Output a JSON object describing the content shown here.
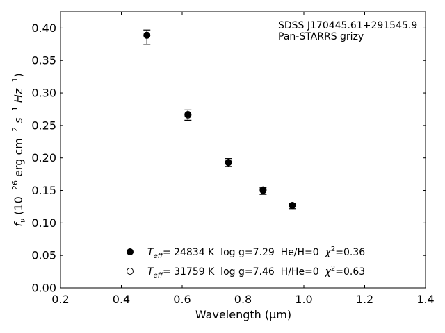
{
  "chart_data": {
    "type": "scatter",
    "annotation_lines": [
      "SDSS J170445.61+291545.9",
      "Pan-STARRS grizy"
    ],
    "xlabel": "Wavelength (μm)",
    "ylabel": {
      "prefix": "f",
      "sub": "ν",
      "unit_text": " (10",
      "exp": "−26",
      "unit_text2": " erg cm",
      "exp2": "−2",
      "unit_text3": " s",
      "exp3": "−1",
      "unit_text4": " Hz",
      "exp4": "−1",
      "unit_text5": ")"
    },
    "xlim": [
      0.2,
      1.4
    ],
    "ylim": [
      0.0,
      0.425
    ],
    "xticks": [
      "0.2",
      "0.4",
      "0.6",
      "0.8",
      "1.0",
      "1.2",
      "1.4"
    ],
    "yticks": [
      "0.00",
      "0.05",
      "0.10",
      "0.15",
      "0.20",
      "0.25",
      "0.30",
      "0.35",
      "0.40"
    ],
    "observed": {
      "x": [
        0.484,
        0.619,
        0.752,
        0.866,
        0.962
      ],
      "y": [
        0.386,
        0.266,
        0.193,
        0.149,
        0.126
      ],
      "err": [
        0.011,
        0.008,
        0.006,
        0.005,
        0.004
      ]
    },
    "series": [
      {
        "name": "Teff= 24834 K  log g=7.29  He/H=0  χ2=0.36",
        "marker": "filled",
        "x": [
          0.484,
          0.619,
          0.752,
          0.866,
          0.962
        ],
        "y": [
          0.389,
          0.267,
          0.193,
          0.15,
          0.127
        ]
      },
      {
        "name": "Teff= 31759 K  log g=7.46  H/He=0  χ2=0.63",
        "marker": "open",
        "x": [
          0.484,
          0.619,
          0.752,
          0.866,
          0.962
        ],
        "y": [
          0.389,
          0.266,
          0.193,
          0.151,
          0.127
        ]
      }
    ],
    "legend": {
      "placement": "lower-left",
      "entries": [
        {
          "t": "T",
          "t_sub": "eff",
          "rest": "= 24834 K  log g=7.29  He/H=0  ",
          "chi": "χ",
          "chi_sup": "2",
          "chi_val": "=0.36"
        },
        {
          "t": "T",
          "t_sub": "eff",
          "rest": "= 31759 K  log g=7.46  H/He=0  ",
          "chi": "χ",
          "chi_sup": "2",
          "chi_val": "=0.63"
        }
      ]
    },
    "grid": false
  }
}
